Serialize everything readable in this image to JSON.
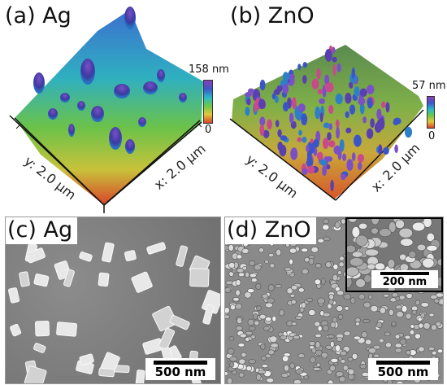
{
  "panels": {
    "a": {
      "label": "(a) Ag",
      "y_axis": "y: 2.0 μm",
      "x_axis": "x: 2.0 μm",
      "cbar_max": "158 nm",
      "cbar_min": "0"
    },
    "b": {
      "label": "(b) ZnO",
      "y_axis": "y: 2.0 μm",
      "x_axis": "x: 2.0 μm",
      "cbar_max": "57 nm",
      "cbar_min": "0"
    },
    "c": {
      "label": "(c) Ag",
      "scalebar": "500 nm"
    },
    "d": {
      "label": "(d) ZnO",
      "scalebar": "500 nm",
      "inset_scalebar": "200 nm"
    }
  }
}
